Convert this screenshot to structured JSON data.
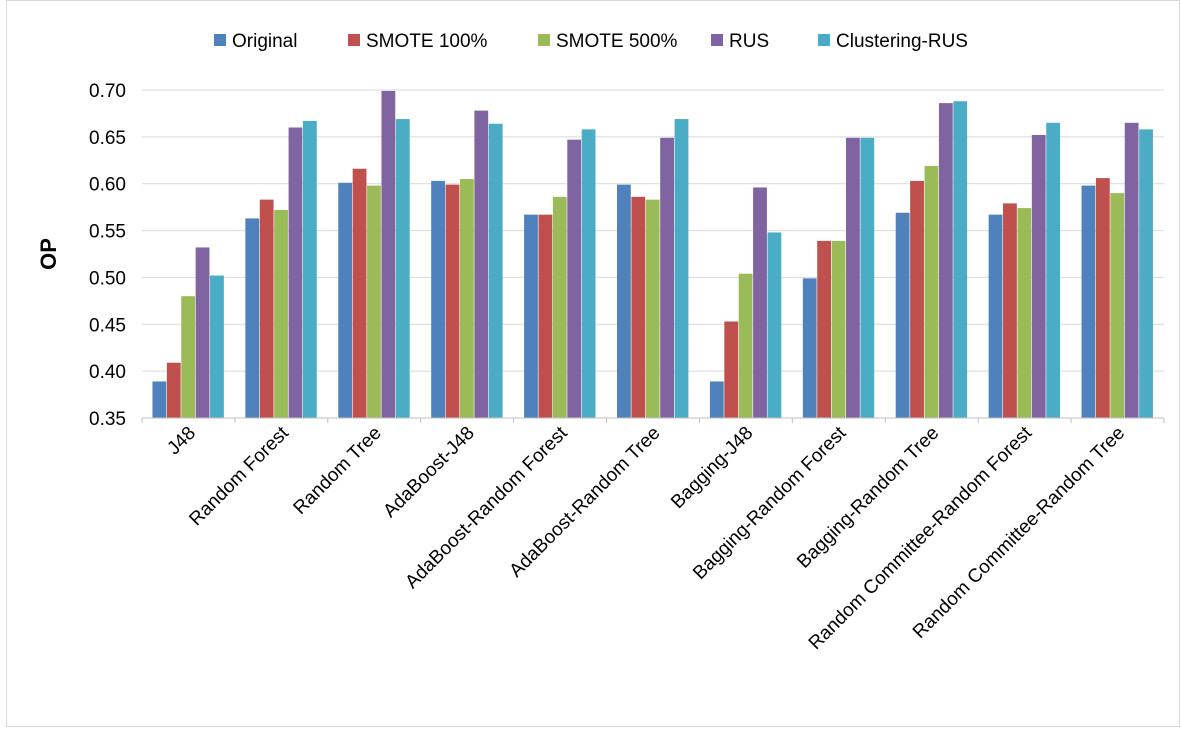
{
  "chart_data": {
    "type": "bar",
    "title": "",
    "xlabel": "",
    "ylabel": "OP",
    "ylim": [
      0.35,
      0.7
    ],
    "yticks": [
      "0.35",
      "0.40",
      "0.45",
      "0.50",
      "0.55",
      "0.60",
      "0.65",
      "0.70"
    ],
    "grid": true,
    "legend_position": "top",
    "categories": [
      "J48",
      "Random Forest",
      "Random Tree",
      "AdaBoost-J48",
      "AdaBoost-Random Forest",
      "AdaBoost-Random Tree",
      "Bagging-J48",
      "Bagging-Random Forest",
      "Bagging-Random Tree",
      "Random Committee-Random Forest",
      "Random Committee-Random Tree"
    ],
    "series": [
      {
        "name": "Original",
        "color": "#4f81bd",
        "values": [
          0.389,
          0.563,
          0.601,
          0.603,
          0.567,
          0.599,
          0.389,
          0.499,
          0.569,
          0.567,
          0.598
        ]
      },
      {
        "name": "SMOTE 100%",
        "color": "#c0504d",
        "values": [
          0.409,
          0.583,
          0.616,
          0.599,
          0.567,
          0.586,
          0.453,
          0.539,
          0.603,
          0.579,
          0.606
        ]
      },
      {
        "name": "SMOTE 500%",
        "color": "#9bbb59",
        "values": [
          0.48,
          0.572,
          0.598,
          0.605,
          0.586,
          0.583,
          0.504,
          0.539,
          0.619,
          0.574,
          0.59
        ]
      },
      {
        "name": "RUS",
        "color": "#8064a2",
        "values": [
          0.532,
          0.66,
          0.699,
          0.678,
          0.647,
          0.649,
          0.596,
          0.649,
          0.686,
          0.652,
          0.665
        ]
      },
      {
        "name": "Clustering-RUS",
        "color": "#4bacc6",
        "values": [
          0.502,
          0.667,
          0.669,
          0.664,
          0.658,
          0.669,
          0.548,
          0.649,
          0.688,
          0.665,
          0.658
        ]
      }
    ]
  }
}
